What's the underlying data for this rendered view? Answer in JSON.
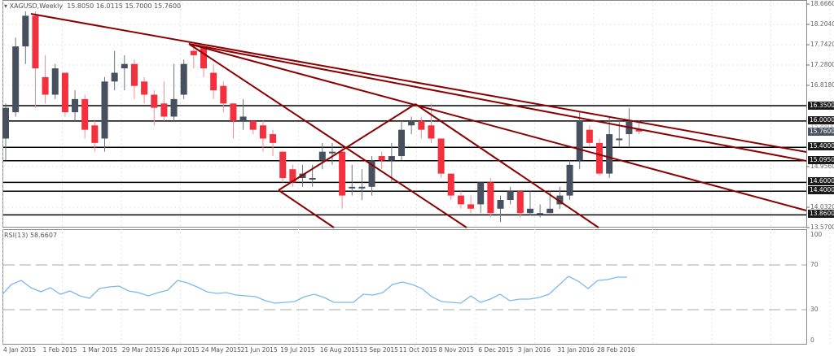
{
  "header": {
    "symbol": "XAGUSD,Weekly",
    "ohlc": "15.8050 16.0115 15.7000 15.7600"
  },
  "rsi": {
    "label": "RSI(13) 58.6607"
  },
  "colors": {
    "bull": "#46505e",
    "bear": "#f5303e",
    "trendline": "#8b0000",
    "hline": "#000000",
    "rsi": "#7cb8f0",
    "grid": "#e4e4e4"
  },
  "price_axis": {
    "ticks": [
      "18.6660",
      "18.2040",
      "17.7420",
      "17.2800",
      "16.8180",
      "14.9560",
      "14.0320",
      "13.5700"
    ],
    "hlines": [
      "16.3500",
      "16.0000",
      "15.4000",
      "15.0950",
      "14.6000",
      "14.4000",
      "13.8600"
    ],
    "current": "15.7600",
    "faded": [
      "15.8800",
      "14.4800"
    ]
  },
  "rsi_axis": {
    "ticks": [
      "100",
      "70",
      "30",
      "0"
    ]
  },
  "time_axis": {
    "labels": [
      "4 Jan 2015",
      "1 Feb 2015",
      "1 Mar 2015",
      "29 Mar 2015",
      "26 Apr 2015",
      "24 May 2015",
      "21 Jun 2015",
      "19 Jul 2015",
      "16 Aug 2015",
      "13 Sep 2015",
      "11 Oct 2015",
      "8 Nov 2015",
      "6 Dec 2015",
      "3 Jan 2016",
      "31 Jan 2016",
      "28 Feb 2016"
    ]
  },
  "chart_data": {
    "type": "candlestick",
    "title": "XAGUSD,Weekly",
    "subtitle": "15.8050 16.0115 15.7000 15.7600",
    "xlabel": "",
    "ylabel": "",
    "ylim": [
      13.57,
      18.666
    ],
    "horizontal_levels": [
      16.35,
      16.0,
      15.4,
      15.095,
      14.6,
      14.4,
      13.86
    ],
    "x": [
      "4 Jan 2015",
      "1 Feb 2015",
      "1 Mar 2015",
      "29 Mar 2015",
      "26 Apr 2015",
      "24 May 2015",
      "21 Jun 2015",
      "19 Jul 2015",
      "16 Aug 2015",
      "13 Sep 2015",
      "11 Oct 2015",
      "8 Nov 2015",
      "6 Dec 2015",
      "3 Jan 2016",
      "31 Jan 2016",
      "28 Feb 2016"
    ],
    "candles": [
      [
        15.6,
        16.3,
        15.1,
        16.4
      ],
      [
        16.2,
        17.7,
        16.1,
        17.9
      ],
      [
        17.7,
        18.4,
        17.3,
        18.5
      ],
      [
        18.4,
        17.2,
        16.3,
        18.5
      ],
      [
        17.0,
        16.6,
        16.4,
        17.5
      ],
      [
        16.6,
        17.2,
        16.5,
        17.3
      ],
      [
        17.1,
        16.2,
        16.1,
        17.1
      ],
      [
        16.2,
        16.5,
        16.0,
        16.7
      ],
      [
        16.5,
        15.8,
        15.6,
        16.6
      ],
      [
        15.9,
        15.5,
        15.3,
        16.0
      ],
      [
        15.6,
        16.9,
        15.3,
        17.0
      ],
      [
        16.9,
        17.1,
        16.7,
        17.6
      ],
      [
        17.2,
        17.3,
        16.7,
        17.5
      ],
      [
        17.3,
        16.8,
        16.5,
        17.4
      ],
      [
        16.9,
        16.6,
        16.4,
        17.0
      ],
      [
        16.6,
        16.3,
        15.9,
        16.7
      ],
      [
        16.4,
        16.1,
        16.0,
        16.9
      ],
      [
        16.1,
        16.5,
        16.0,
        17.3
      ],
      [
        16.6,
        17.3,
        16.5,
        17.4
      ],
      [
        17.6,
        17.5,
        17.2,
        17.8
      ],
      [
        17.7,
        17.2,
        17.0,
        17.7
      ],
      [
        17.1,
        16.7,
        16.5,
        17.3
      ],
      [
        16.8,
        16.4,
        16.2,
        16.9
      ],
      [
        16.4,
        16.0,
        15.6,
        16.4
      ],
      [
        16.0,
        16.1,
        15.8,
        16.5
      ],
      [
        16.0,
        15.8,
        15.7,
        16.0
      ],
      [
        15.9,
        15.6,
        15.3,
        16.0
      ],
      [
        15.7,
        15.5,
        15.2,
        15.8
      ],
      [
        15.3,
        14.7,
        14.6,
        15.3
      ],
      [
        14.9,
        14.6,
        14.5,
        15.0
      ],
      [
        14.7,
        14.8,
        14.5,
        15.0
      ],
      [
        14.7,
        14.7,
        14.5,
        15.0
      ],
      [
        15.1,
        15.3,
        14.9,
        15.5
      ],
      [
        15.3,
        15.3,
        15.0,
        15.5
      ],
      [
        15.3,
        14.3,
        14.0,
        15.4
      ],
      [
        14.5,
        14.5,
        14.3,
        15.0
      ],
      [
        14.5,
        14.5,
        14.2,
        14.9
      ],
      [
        14.5,
        15.1,
        14.3,
        15.2
      ],
      [
        15.2,
        15.1,
        14.9,
        15.3
      ],
      [
        15.1,
        15.2,
        14.6,
        15.5
      ],
      [
        15.2,
        15.8,
        15.1,
        16.0
      ],
      [
        15.9,
        16.0,
        15.7,
        16.1
      ],
      [
        16.0,
        15.8,
        15.6,
        16.1
      ],
      [
        15.9,
        15.6,
        15.5,
        16.4
      ],
      [
        15.6,
        14.8,
        14.7,
        15.6
      ],
      [
        14.8,
        14.3,
        14.2,
        14.8
      ],
      [
        14.3,
        14.1,
        14.0,
        14.4
      ],
      [
        14.1,
        14.0,
        13.9,
        14.3
      ],
      [
        14.1,
        14.6,
        13.9,
        14.6
      ],
      [
        14.6,
        13.9,
        13.8,
        14.7
      ],
      [
        14.0,
        14.2,
        13.7,
        14.3
      ],
      [
        14.2,
        14.4,
        14.1,
        14.5
      ],
      [
        14.4,
        13.9,
        13.8,
        14.4
      ],
      [
        13.9,
        14.0,
        13.85,
        14.4
      ],
      [
        13.9,
        13.9,
        13.8,
        14.1
      ],
      [
        13.9,
        14.0,
        13.9,
        14.4
      ],
      [
        14.1,
        14.3,
        14.0,
        14.5
      ],
      [
        14.3,
        15.0,
        14.2,
        15.1
      ],
      [
        15.1,
        16.0,
        14.9,
        16.2
      ],
      [
        15.8,
        15.5,
        15.4,
        15.9
      ],
      [
        15.5,
        14.8,
        14.75,
        15.6
      ],
      [
        14.8,
        15.7,
        14.7,
        16.1
      ],
      [
        15.6,
        15.6,
        15.4,
        16.0
      ],
      [
        15.7,
        16.0,
        15.4,
        16.3
      ],
      [
        15.805,
        15.76,
        15.7,
        16.0115
      ]
    ],
    "rsi_series": {
      "name": "RSI(13)",
      "current": 58.6607,
      "ylim": [
        0,
        100
      ],
      "levels": [
        70,
        30
      ]
    }
  }
}
